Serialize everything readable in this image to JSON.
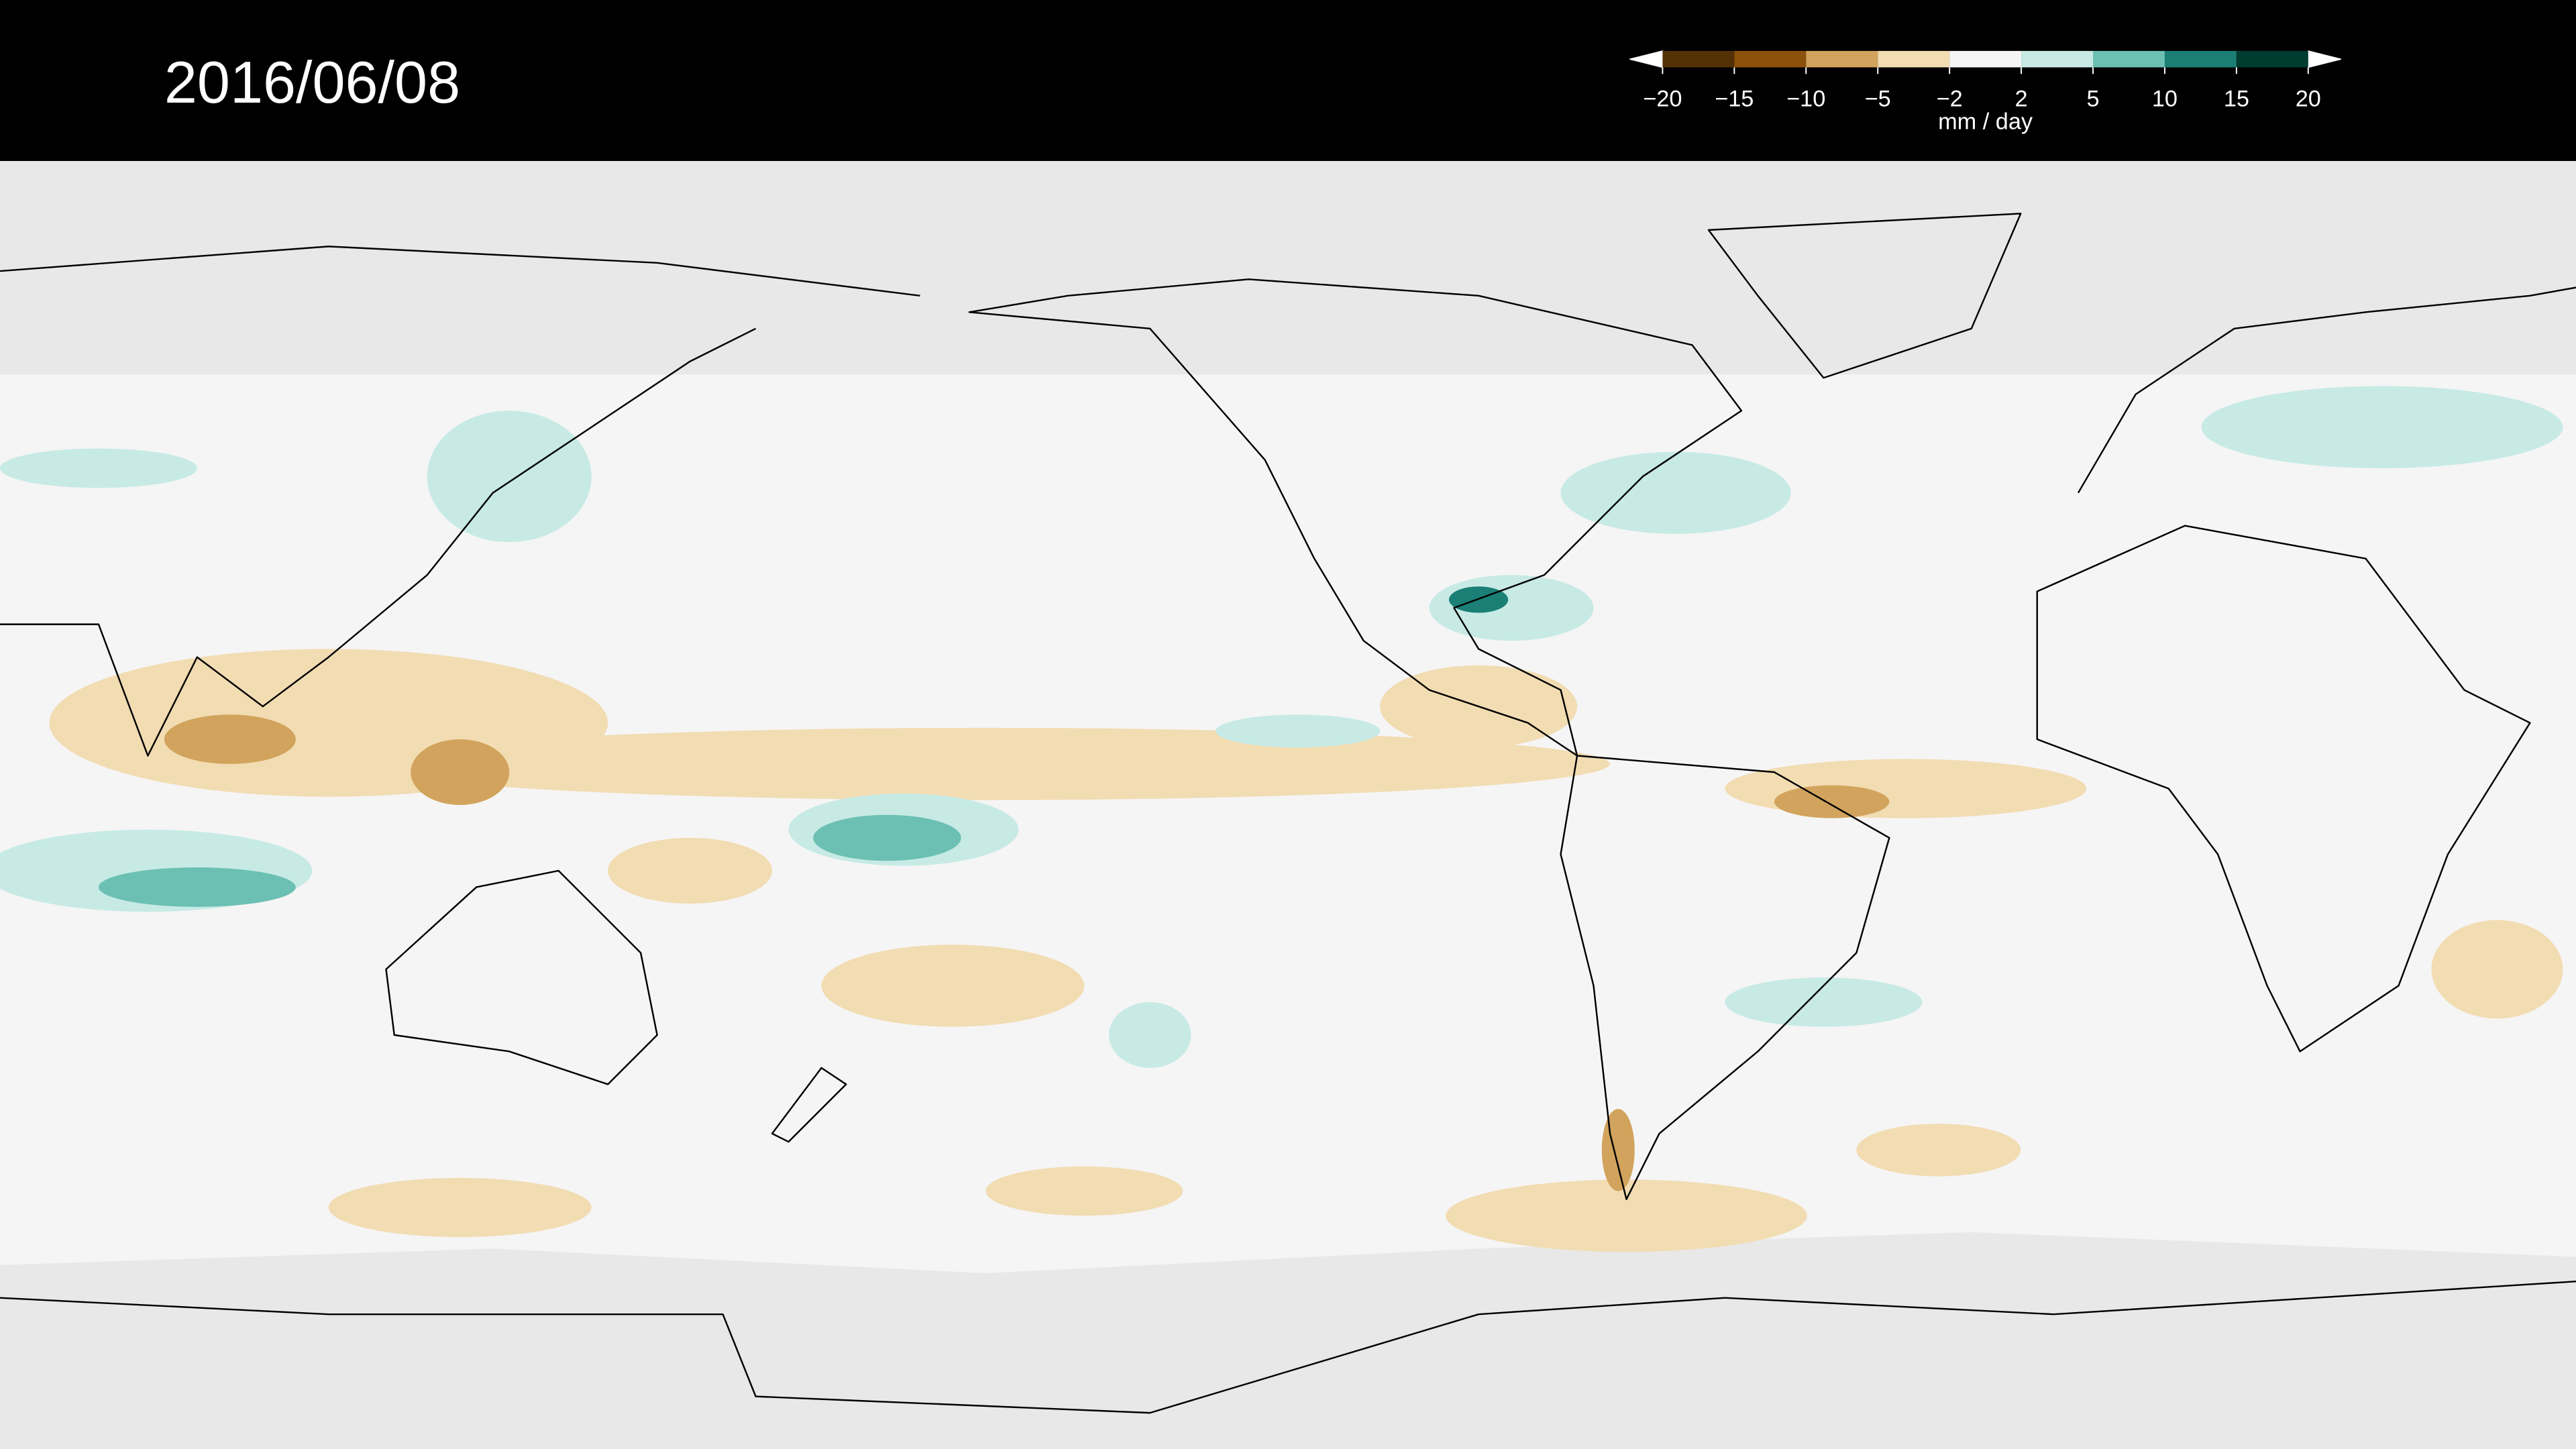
{
  "title": "2016/06/08",
  "legend": {
    "unit": "mm / day",
    "ticks": [
      {
        "value": -20,
        "label": "−20"
      },
      {
        "value": -15,
        "label": "−15"
      },
      {
        "value": -10,
        "label": "−10"
      },
      {
        "value": -5,
        "label": "−5"
      },
      {
        "value": -2,
        "label": "−2"
      },
      2,
      5,
      10,
      15,
      20
    ],
    "colors": [
      "#543005",
      "#8c510a",
      "#d1a35c",
      "#f2dcb2",
      "#f5f5f5",
      "#c7eae5",
      "#6cc0b3",
      "#1b7f76",
      "#003c30"
    ]
  }
}
